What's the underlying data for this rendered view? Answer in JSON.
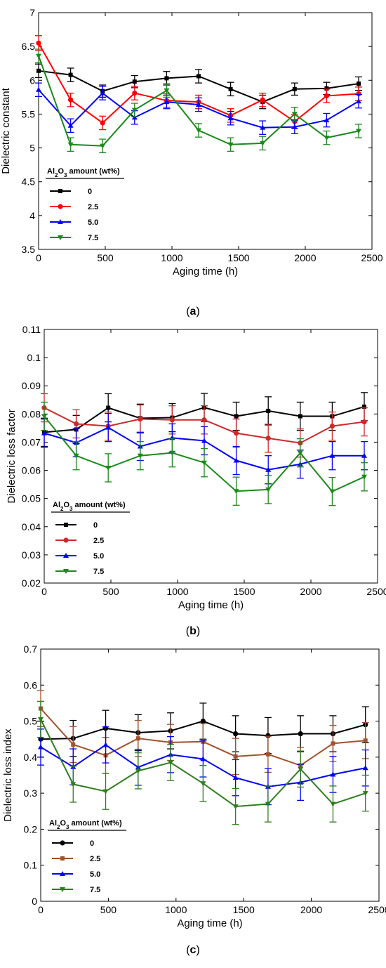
{
  "panels": [
    {
      "caption": "(a)",
      "caption_letter": "a",
      "legend_title": {
        "prefix": "Al",
        "sub1": "2",
        "mid": "O",
        "sub2": "3",
        "suffix": " amount (wt%)"
      },
      "colors": {
        "0": "#000000",
        "2.5": "#ff0000",
        "5.0": "#0000ff",
        "7.5": "#1a8a1a"
      },
      "chart_data": {
        "type": "line",
        "title": "",
        "xlabel": "Aging time (h)",
        "ylabel": "Dielectric constant",
        "xlim": [
          0,
          2500
        ],
        "ylim": [
          3.5,
          7
        ],
        "xticks": [
          0,
          500,
          1000,
          1500,
          2000,
          2500
        ],
        "yticks": [
          3.5,
          4,
          4.5,
          5,
          5.5,
          6,
          6.5,
          7
        ],
        "x": [
          0,
          240,
          480,
          720,
          960,
          1200,
          1440,
          1680,
          1920,
          2160,
          2400
        ],
        "legend_position": "lower-left",
        "series": [
          {
            "name": "0",
            "marker": "square",
            "values": [
              6.14,
              6.08,
              5.84,
              5.98,
              6.03,
              6.06,
              5.87,
              5.68,
              5.87,
              5.88,
              5.95
            ],
            "errors": [
              0.1,
              0.1,
              0.09,
              0.09,
              0.1,
              0.1,
              0.1,
              0.1,
              0.09,
              0.09,
              0.1
            ]
          },
          {
            "name": "2.5",
            "marker": "circle",
            "values": [
              6.55,
              5.71,
              5.37,
              5.81,
              5.7,
              5.68,
              5.48,
              5.71,
              5.39,
              5.77,
              5.8
            ],
            "errors": [
              0.11,
              0.1,
              0.1,
              0.1,
              0.1,
              0.1,
              0.1,
              0.1,
              0.1,
              0.1,
              0.1
            ]
          },
          {
            "name": "5.0",
            "marker": "triangle-up",
            "values": [
              5.86,
              5.33,
              5.81,
              5.45,
              5.68,
              5.64,
              5.44,
              5.3,
              5.31,
              5.41,
              5.69
            ],
            "errors": [
              0.1,
              0.1,
              0.1,
              0.1,
              0.1,
              0.1,
              0.1,
              0.1,
              0.1,
              0.1,
              0.1
            ]
          },
          {
            "name": "7.5",
            "marker": "triangle-down",
            "values": [
              6.36,
              5.05,
              5.03,
              5.56,
              5.85,
              5.26,
              5.05,
              5.07,
              5.5,
              5.15,
              5.25
            ],
            "errors": [
              0.1,
              0.1,
              0.1,
              0.1,
              0.1,
              0.1,
              0.1,
              0.1,
              0.1,
              0.1,
              0.1
            ]
          }
        ]
      }
    },
    {
      "caption": "(b)",
      "caption_letter": "b",
      "legend_title": {
        "prefix": "Al",
        "sub1": "2",
        "mid": "O",
        "sub2": "3",
        "suffix": " amount (wt%)"
      },
      "colors": {
        "0": "#000000",
        "2.5": "#cc2a2a",
        "5.0": "#0000ff",
        "7.5": "#1a8a1a"
      },
      "chart_data": {
        "type": "line",
        "title": "",
        "xlabel": "Aging time (h)",
        "ylabel": "Dielectric loss factor",
        "xlim": [
          0,
          2500
        ],
        "ylim": [
          0.02,
          0.11
        ],
        "xticks": [
          0,
          500,
          1000,
          1500,
          2000,
          2500
        ],
        "yticks": [
          0.02,
          0.03,
          0.04,
          0.05,
          0.06,
          0.07,
          0.08,
          0.09,
          0.1,
          0.11
        ],
        "x": [
          0,
          240,
          480,
          720,
          960,
          1200,
          1440,
          1680,
          1920,
          2160,
          2400
        ],
        "legend_position": "lower-left",
        "series": [
          {
            "name": "0",
            "marker": "square",
            "values": [
              0.0735,
              0.0745,
              0.0822,
              0.0785,
              0.0787,
              0.0823,
              0.0792,
              0.0811,
              0.0792,
              0.0792,
              0.0826
            ],
            "errors": [
              0.005,
              0.005,
              0.005,
              0.005,
              0.005,
              0.005,
              0.005,
              0.005,
              0.005,
              0.005,
              0.005
            ]
          },
          {
            "name": "2.5",
            "marker": "circle",
            "values": [
              0.0822,
              0.0765,
              0.0757,
              0.0782,
              0.0779,
              0.0779,
              0.0732,
              0.0714,
              0.0697,
              0.0757,
              0.0772
            ],
            "errors": [
              0.005,
              0.005,
              0.005,
              0.005,
              0.005,
              0.005,
              0.005,
              0.005,
              0.005,
              0.005,
              0.005
            ]
          },
          {
            "name": "5.0",
            "marker": "triangle-up",
            "values": [
              0.0732,
              0.0698,
              0.0752,
              0.0685,
              0.0715,
              0.0705,
              0.0635,
              0.0602,
              0.0622,
              0.0652,
              0.0652
            ],
            "errors": [
              0.005,
              0.005,
              0.005,
              0.005,
              0.005,
              0.005,
              0.005,
              0.005,
              0.005,
              0.005,
              0.005
            ]
          },
          {
            "name": "7.5",
            "marker": "triangle-down",
            "values": [
              0.0792,
              0.0652,
              0.0609,
              0.0652,
              0.0662,
              0.0627,
              0.0526,
              0.0532,
              0.0662,
              0.0525,
              0.0577
            ],
            "errors": [
              0.005,
              0.005,
              0.005,
              0.005,
              0.005,
              0.005,
              0.005,
              0.005,
              0.005,
              0.005,
              0.005
            ]
          }
        ]
      }
    },
    {
      "caption": "(c)",
      "caption_letter": "c",
      "legend_title": {
        "prefix": "Al",
        "sub1": "2",
        "mid": "O",
        "sub2": "3",
        "suffix": " amount (wt%)"
      },
      "colors": {
        "0": "#000000",
        "2.5": "#a0522d",
        "5.0": "#0000ff",
        "7.5": "#2e7d1e"
      },
      "chart_data": {
        "type": "line",
        "title": "",
        "xlabel": "Aging time (h)",
        "ylabel": "Dielectric loss index",
        "xlim": [
          0,
          2500
        ],
        "ylim": [
          0,
          0.7
        ],
        "xticks": [
          0,
          500,
          1000,
          1500,
          2000,
          2500
        ],
        "yticks": [
          0,
          0.1,
          0.2,
          0.3,
          0.4,
          0.5,
          0.6,
          0.7
        ],
        "x": [
          0,
          240,
          480,
          720,
          960,
          1200,
          1440,
          1680,
          1920,
          2160,
          2400
        ],
        "legend_position": "lower-left",
        "series": [
          {
            "name": "0",
            "marker": "circle",
            "values": [
              0.45,
              0.452,
              0.48,
              0.468,
              0.473,
              0.5,
              0.465,
              0.46,
              0.465,
              0.465,
              0.49
            ],
            "errors": [
              0.05,
              0.05,
              0.05,
              0.05,
              0.05,
              0.05,
              0.05,
              0.05,
              0.05,
              0.05,
              0.05
            ]
          },
          {
            "name": "2.5",
            "marker": "square",
            "values": [
              0.535,
              0.435,
              0.405,
              0.452,
              0.441,
              0.443,
              0.402,
              0.408,
              0.377,
              0.438,
              0.446
            ],
            "errors": [
              0.05,
              0.05,
              0.05,
              0.05,
              0.05,
              0.05,
              0.05,
              0.05,
              0.05,
              0.05,
              0.05
            ]
          },
          {
            "name": "5.0",
            "marker": "triangle-up",
            "values": [
              0.428,
              0.373,
              0.434,
              0.372,
              0.407,
              0.395,
              0.343,
              0.318,
              0.33,
              0.352,
              0.37
            ],
            "errors": [
              0.05,
              0.05,
              0.05,
              0.05,
              0.05,
              0.05,
              0.05,
              0.05,
              0.05,
              0.05,
              0.05
            ]
          },
          {
            "name": "7.5",
            "marker": "triangle-down",
            "values": [
              0.505,
              0.325,
              0.305,
              0.362,
              0.385,
              0.327,
              0.263,
              0.27,
              0.367,
              0.27,
              0.3
            ],
            "errors": [
              0.05,
              0.05,
              0.05,
              0.05,
              0.05,
              0.05,
              0.05,
              0.05,
              0.05,
              0.05,
              0.05
            ]
          }
        ]
      }
    }
  ]
}
